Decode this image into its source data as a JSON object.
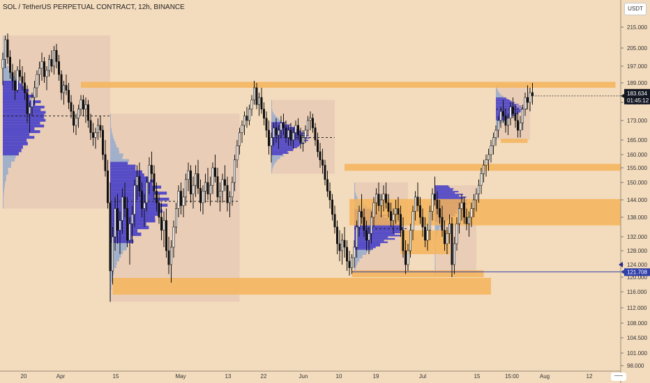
{
  "header": {
    "title": "SOL / TetherUS PERPETUAL CONTRACT, 12h, BINANCE",
    "unit_badge": "USDT"
  },
  "chart_data": {
    "type": "candlestick",
    "symbol": "SOL / TetherUS PERPETUAL CONTRACT",
    "interval": "12h",
    "exchange": "BINANCE",
    "y_axis_side": "right",
    "y_ticks": [
      215,
      205,
      197,
      189,
      181,
      173,
      165,
      160,
      155,
      150,
      144,
      138,
      132,
      128,
      124,
      120,
      116,
      112,
      108,
      104.5,
      101,
      98
    ],
    "y_tick_labels": [
      "215.000",
      "205.000",
      "197.000",
      "189.000",
      "181.000",
      "173.000",
      "165.000",
      "160.000",
      "155.000",
      "150.000",
      "144.000",
      "138.000",
      "132.000",
      "128.000",
      "124.000",
      "120.000",
      "116.000",
      "112.000",
      "108.000",
      "104.500",
      "101.000",
      "98.000"
    ],
    "x_tick_labels": [
      "20",
      "Apr",
      "15",
      "May",
      "13",
      "22",
      "Jun",
      "10",
      "19",
      "Jul",
      "15",
      "15:00",
      "Aug",
      "12",
      "21"
    ],
    "current_price": {
      "value": 183.634,
      "label": "183.634",
      "countdown": "01:45:12",
      "color": "#131722"
    },
    "marked_price": {
      "value": 121.708,
      "label": "121.708",
      "color": "#2f3ea8"
    },
    "colors": {
      "background": "#f3dbbd",
      "candle": "#111111",
      "zone": "#f5b45a",
      "volume_profile": "#3b35c9",
      "volume_profile_light": "#7a9fd6",
      "session_box": "#e6c8b4"
    },
    "zones": [
      {
        "price_top": 189.5,
        "price_bottom": 187.0,
        "start_index": 32,
        "end_index": 251
      },
      {
        "price_top": 156.5,
        "price_bottom": 154.0,
        "start_index": 140,
        "end_index": 260
      },
      {
        "price_top": 144.3,
        "price_bottom": 135.5,
        "start_index": 142,
        "end_index": 260
      },
      {
        "price_top": 134.0,
        "price_bottom": 127.0,
        "start_index": 163,
        "end_index": 183
      },
      {
        "price_top": 122.2,
        "price_bottom": 120.0,
        "start_index": 143,
        "end_index": 197
      },
      {
        "price_top": 119.8,
        "price_bottom": 115.3,
        "start_index": 45,
        "end_index": 200
      },
      {
        "price_top": 165.5,
        "price_bottom": 164.0,
        "start_index": 204,
        "end_index": 215
      }
    ],
    "sessions": [
      {
        "start_index": 0,
        "end_index": 44,
        "high": 211,
        "low": 141,
        "poc": 175,
        "profile_width": 65
      },
      {
        "start_index": 44,
        "end_index": 97,
        "high": 176,
        "low": 113.5,
        "poc": 143.5,
        "profile_width": 85
      },
      {
        "start_index": 110,
        "end_index": 136,
        "high": 182,
        "low": 153,
        "poc": 166,
        "profile_width": 55
      },
      {
        "start_index": 144,
        "end_index": 166,
        "high": 150,
        "low": 121,
        "poc": 134.5,
        "profile_width": 75
      },
      {
        "start_index": 177,
        "end_index": 194,
        "high": 149,
        "low": 120,
        "poc": 143,
        "profile_width": 50
      },
      {
        "start_index": 202,
        "end_index": 216,
        "high": 188,
        "low": 165,
        "poc": 178,
        "profile_width": 40
      }
    ],
    "ohlc": [
      [
        196,
        203,
        188,
        200
      ],
      [
        200,
        211,
        196,
        209
      ],
      [
        209,
        212,
        198,
        201
      ],
      [
        201,
        204,
        191,
        194
      ],
      [
        194,
        198,
        186,
        190
      ],
      [
        190,
        195,
        182,
        186
      ],
      [
        186,
        197,
        185,
        195
      ],
      [
        195,
        200,
        190,
        192
      ],
      [
        192,
        197,
        186,
        189
      ],
      [
        189,
        194,
        182,
        185
      ],
      [
        185,
        188,
        172,
        176
      ],
      [
        176,
        181,
        168,
        179
      ],
      [
        179,
        185,
        175,
        183
      ],
      [
        183,
        190,
        180,
        187
      ],
      [
        187,
        195,
        183,
        193
      ],
      [
        193,
        199,
        188,
        196
      ],
      [
        196,
        203,
        190,
        199
      ],
      [
        199,
        201,
        189,
        192
      ],
      [
        192,
        197,
        186,
        195
      ],
      [
        195,
        202,
        192,
        200
      ],
      [
        200,
        204,
        194,
        197
      ],
      [
        197,
        206,
        193,
        204
      ],
      [
        204,
        207,
        196,
        199
      ],
      [
        199,
        202,
        190,
        193
      ],
      [
        193,
        195,
        182,
        185
      ],
      [
        185,
        190,
        180,
        188
      ],
      [
        188,
        193,
        184,
        186
      ],
      [
        186,
        189,
        178,
        181
      ],
      [
        181,
        184,
        174,
        177
      ],
      [
        177,
        180,
        168,
        171
      ],
      [
        171,
        176,
        167,
        174
      ],
      [
        174,
        180,
        170,
        178
      ],
      [
        178,
        184,
        175,
        182
      ],
      [
        182,
        184,
        175,
        178
      ],
      [
        178,
        183,
        172,
        180
      ],
      [
        180,
        182,
        170,
        173
      ],
      [
        173,
        176,
        165,
        168
      ],
      [
        168,
        172,
        163,
        166
      ],
      [
        166,
        170,
        162,
        168
      ],
      [
        168,
        174,
        165,
        171
      ],
      [
        171,
        175,
        166,
        169
      ],
      [
        169,
        171,
        158,
        160
      ],
      [
        160,
        165,
        152,
        154
      ],
      [
        154,
        158,
        141,
        143
      ],
      [
        143,
        150,
        113.5,
        122
      ],
      [
        122,
        135,
        118,
        132
      ],
      [
        132,
        145,
        128,
        141
      ],
      [
        141,
        146,
        130,
        134
      ],
      [
        134,
        140,
        127,
        137
      ],
      [
        137,
        148,
        133,
        145
      ],
      [
        145,
        150,
        138,
        141
      ],
      [
        141,
        145,
        129,
        131
      ],
      [
        131,
        138,
        124,
        136
      ],
      [
        136,
        142,
        130,
        139
      ],
      [
        139,
        151,
        135,
        149
      ],
      [
        149,
        156,
        144,
        152
      ],
      [
        152,
        157,
        145,
        147
      ],
      [
        147,
        150,
        138,
        141
      ],
      [
        141,
        146,
        135,
        143
      ],
      [
        143,
        152,
        140,
        150
      ],
      [
        150,
        159,
        146,
        156
      ],
      [
        156,
        161,
        150,
        153
      ],
      [
        153,
        156,
        144,
        147
      ],
      [
        147,
        150,
        140,
        143
      ],
      [
        143,
        146,
        136,
        138
      ],
      [
        138,
        143,
        131,
        134
      ],
      [
        134,
        140,
        129,
        137
      ],
      [
        137,
        141,
        126,
        128
      ],
      [
        128,
        132,
        121,
        124
      ],
      [
        124,
        131,
        118.5,
        129
      ],
      [
        129,
        137,
        126,
        135
      ],
      [
        135,
        143,
        133,
        141
      ],
      [
        141,
        149,
        138,
        147
      ],
      [
        147,
        150,
        139,
        142
      ],
      [
        142,
        148,
        138,
        145
      ],
      [
        145,
        153,
        142,
        151
      ],
      [
        151,
        157,
        147,
        154
      ],
      [
        154,
        156,
        143,
        146
      ],
      [
        146,
        152,
        141,
        149
      ],
      [
        149,
        156,
        145,
        153
      ],
      [
        153,
        158,
        146,
        148
      ],
      [
        148,
        151,
        140,
        143
      ],
      [
        143,
        149,
        139,
        147
      ],
      [
        147,
        153,
        143,
        150
      ],
      [
        150,
        155,
        144,
        146
      ],
      [
        146,
        152,
        142,
        149
      ],
      [
        149,
        157,
        146,
        155
      ],
      [
        155,
        160,
        150,
        152
      ],
      [
        152,
        155,
        143,
        145
      ],
      [
        145,
        150,
        140,
        147
      ],
      [
        147,
        153,
        143,
        151
      ],
      [
        151,
        156,
        147,
        149
      ],
      [
        149,
        152,
        140,
        143
      ],
      [
        143,
        147,
        138,
        145
      ],
      [
        145,
        152,
        142,
        150
      ],
      [
        150,
        160,
        147,
        158
      ],
      [
        158,
        165,
        155,
        163
      ],
      [
        163,
        170,
        160,
        168
      ],
      [
        168,
        173,
        164,
        171
      ],
      [
        171,
        177,
        167,
        175
      ],
      [
        175,
        179,
        170,
        173
      ],
      [
        173,
        180,
        171,
        178
      ],
      [
        178,
        184,
        175,
        182
      ],
      [
        182,
        190,
        180,
        187
      ],
      [
        187,
        189,
        178,
        180
      ],
      [
        180,
        185,
        175,
        183
      ],
      [
        183,
        187,
        176,
        178
      ],
      [
        178,
        181,
        171,
        174
      ],
      [
        174,
        177,
        166,
        169
      ],
      [
        169,
        173,
        160,
        163
      ],
      [
        163,
        168,
        157,
        166
      ],
      [
        166,
        172,
        163,
        170
      ],
      [
        170,
        174,
        164,
        167
      ],
      [
        167,
        171,
        162,
        169
      ],
      [
        169,
        175,
        166,
        172
      ],
      [
        172,
        176,
        167,
        170
      ],
      [
        170,
        173,
        164,
        166
      ],
      [
        166,
        171,
        163,
        169
      ],
      [
        169,
        172,
        163,
        165
      ],
      [
        165,
        170,
        162,
        168
      ],
      [
        168,
        173,
        165,
        171
      ],
      [
        171,
        174,
        165,
        167
      ],
      [
        167,
        170,
        162,
        164
      ],
      [
        164,
        169,
        161,
        166
      ],
      [
        166,
        171,
        164,
        169
      ],
      [
        169,
        175,
        167,
        173
      ],
      [
        173,
        177,
        169,
        174
      ],
      [
        174,
        176,
        168,
        170
      ],
      [
        170,
        172,
        163,
        165
      ],
      [
        165,
        168,
        159,
        161
      ],
      [
        161,
        164,
        155,
        158
      ],
      [
        158,
        162,
        153,
        156
      ],
      [
        156,
        158,
        149,
        151
      ],
      [
        151,
        154,
        145,
        147
      ],
      [
        147,
        150,
        141,
        144
      ],
      [
        144,
        146,
        137,
        139
      ],
      [
        139,
        142,
        133,
        135
      ],
      [
        135,
        137,
        127,
        130
      ],
      [
        130,
        134,
        125,
        128
      ],
      [
        128,
        133,
        124,
        131
      ],
      [
        131,
        135,
        126,
        129
      ],
      [
        129,
        131,
        122,
        125
      ],
      [
        125,
        128,
        120.5,
        123
      ],
      [
        123,
        127,
        121,
        126
      ],
      [
        126,
        131,
        123,
        129
      ],
      [
        129,
        137,
        126,
        135
      ],
      [
        135,
        142,
        132,
        140
      ],
      [
        140,
        146,
        136,
        138
      ],
      [
        138,
        141,
        132,
        134
      ],
      [
        134,
        137,
        128,
        131
      ],
      [
        131,
        135,
        127,
        133
      ],
      [
        133,
        140,
        130,
        138
      ],
      [
        138,
        145,
        135,
        143
      ],
      [
        143,
        148,
        139,
        146
      ],
      [
        146,
        150,
        140,
        142
      ],
      [
        142,
        146,
        138,
        144
      ],
      [
        144,
        149,
        140,
        146
      ],
      [
        146,
        150,
        141,
        143
      ],
      [
        143,
        146,
        138,
        140
      ],
      [
        140,
        143,
        135,
        137
      ],
      [
        137,
        141,
        133,
        139
      ],
      [
        139,
        144,
        136,
        141
      ],
      [
        141,
        145,
        137,
        139
      ],
      [
        139,
        142,
        132,
        134
      ],
      [
        134,
        138,
        126,
        128
      ],
      [
        128,
        131,
        121,
        124
      ],
      [
        124,
        130,
        122,
        128
      ],
      [
        128,
        136,
        126,
        134
      ],
      [
        134,
        142,
        131,
        140
      ],
      [
        140,
        147,
        137,
        145
      ],
      [
        145,
        150,
        140,
        142
      ],
      [
        142,
        145,
        136,
        138
      ],
      [
        138,
        141,
        132,
        135
      ],
      [
        135,
        138,
        129,
        131
      ],
      [
        131,
        136,
        128,
        134
      ],
      [
        134,
        142,
        131,
        140
      ],
      [
        140,
        148,
        137,
        146
      ],
      [
        146,
        152,
        142,
        144
      ],
      [
        144,
        147,
        139,
        141
      ],
      [
        141,
        144,
        136,
        138
      ],
      [
        138,
        142,
        132,
        134
      ],
      [
        134,
        137,
        128,
        130
      ],
      [
        130,
        135,
        127,
        133
      ],
      [
        133,
        139,
        130,
        136
      ],
      [
        136,
        138,
        120,
        124
      ],
      [
        124,
        132,
        121,
        130
      ],
      [
        130,
        138,
        128,
        136
      ],
      [
        136,
        143,
        133,
        141
      ],
      [
        141,
        146,
        137,
        143
      ],
      [
        143,
        145,
        136,
        138
      ],
      [
        138,
        141,
        134,
        136
      ],
      [
        136,
        140,
        132,
        138
      ],
      [
        138,
        143,
        135,
        141
      ],
      [
        141,
        146,
        138,
        144
      ],
      [
        144,
        148,
        140,
        146
      ],
      [
        146,
        151,
        143,
        149
      ],
      [
        149,
        155,
        146,
        153
      ],
      [
        153,
        158,
        150,
        156
      ],
      [
        156,
        160,
        152,
        158
      ],
      [
        158,
        162,
        154,
        160
      ],
      [
        160,
        165,
        157,
        163
      ],
      [
        163,
        168,
        160,
        166
      ],
      [
        166,
        171,
        163,
        169
      ],
      [
        169,
        175,
        166,
        173
      ],
      [
        173,
        179,
        170,
        177
      ],
      [
        177,
        182,
        172,
        175
      ],
      [
        175,
        178,
        168,
        171
      ],
      [
        171,
        176,
        167,
        174
      ],
      [
        174,
        181,
        171,
        179
      ],
      [
        179,
        183,
        174,
        176
      ],
      [
        176,
        180,
        170,
        173
      ],
      [
        173,
        177,
        166,
        169
      ],
      [
        169,
        175,
        166,
        172
      ],
      [
        172,
        180,
        169,
        178
      ],
      [
        178,
        185,
        175,
        183
      ],
      [
        183,
        188,
        178,
        181
      ],
      [
        181,
        187,
        177,
        185
      ],
      [
        185,
        189,
        180,
        183.634
      ]
    ]
  }
}
